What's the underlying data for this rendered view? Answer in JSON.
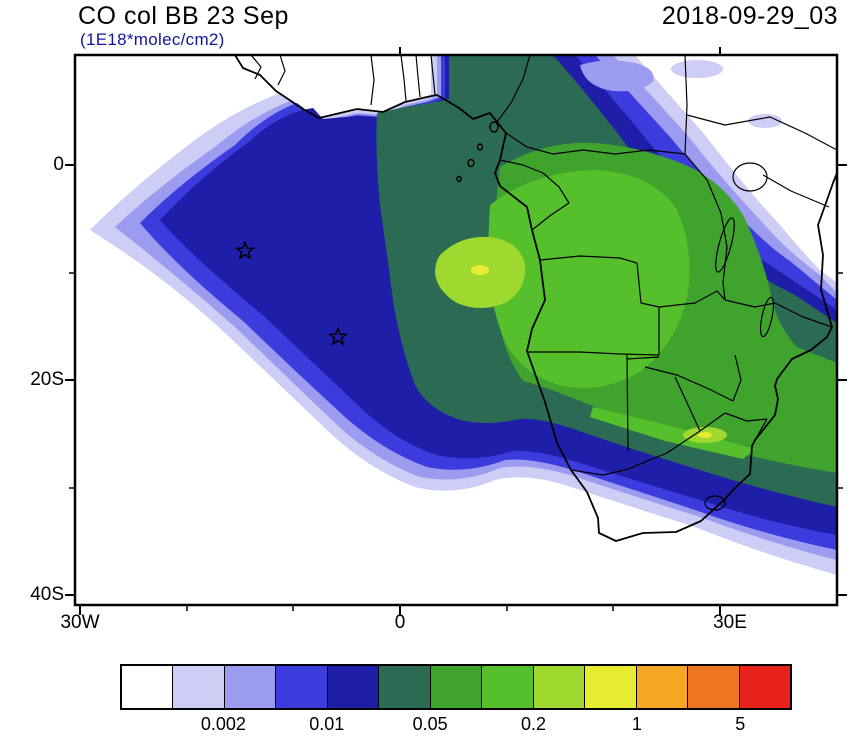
{
  "header": {
    "title": "CO col BB 23 Sep",
    "subtitle": "(1E18*molec/cm2)",
    "date": "2018-09-29_03"
  },
  "axes": {
    "y_ticks": [
      "0",
      "20S",
      "40S"
    ],
    "x_ticks": [
      "30W",
      "0",
      "30E"
    ]
  },
  "chart_data": {
    "type": "heatmap",
    "title": "CO col BB 23 Sep",
    "units": "1E18*molec/cm2",
    "timestamp": "2018-09-29_03",
    "description": "Filled-contour map of biomass-burning CO column over Africa and the South Atlantic; plume core over the Gulf of Guinea and central/southern Africa extending southwest over the ocean and southeast to the Indian Ocean",
    "x_axis": {
      "tick_labels": [
        "30W",
        "0",
        "30E"
      ],
      "approx_range_deg": [
        -30.5,
        40.5
      ]
    },
    "y_axis": {
      "tick_labels": [
        "0",
        "20S",
        "40S"
      ],
      "approx_range_deg": [
        10.2,
        -40.9
      ]
    },
    "colorbar": {
      "orientation": "horizontal",
      "colors": [
        "#FFFFFF",
        "#CDCDF6",
        "#9B9BEF",
        "#3B3BDE",
        "#1E1EA8",
        "#2B6A53",
        "#3FA32E",
        "#55C02C",
        "#9FD930",
        "#E8EC30",
        "#F5A623",
        "#EE7621",
        "#E8211D"
      ],
      "tick_labels": [
        "0.002",
        "0.01",
        "0.05",
        "0.2",
        "1",
        "5"
      ],
      "tick_boundary_indices": [
        2,
        4,
        6,
        8,
        10,
        12
      ]
    },
    "markers": [
      {
        "type": "open-star",
        "approx_lon": -14.5,
        "approx_lat": -8
      },
      {
        "type": "open-star",
        "approx_lon": -5.8,
        "approx_lat": -16
      }
    ]
  }
}
